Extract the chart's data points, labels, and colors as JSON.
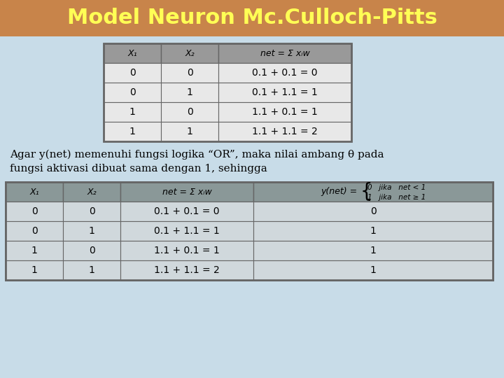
{
  "title": "Model Neuron Mc.Culloch-Pitts",
  "title_color": "#FFFF55",
  "title_bg_color": "#C8844A",
  "bg_color": "#C8DCE8",
  "table1_header": [
    "X₁",
    "X₂",
    "net = Σ xᵢw"
  ],
  "table1_rows": [
    [
      "0",
      "0",
      "0.1 + 0.1 = 0"
    ],
    [
      "0",
      "1",
      "0.1 + 1.1 = 1"
    ],
    [
      "1",
      "0",
      "1.1 + 0.1 = 1"
    ],
    [
      "1",
      "1",
      "1.1 + 1.1 = 2"
    ]
  ],
  "middle_text_line1": "Agar y(net) memenuhi fungsi logika “OR”, maka nilai ambang θ pada",
  "middle_text_line2": "fungsi aktivasi dibuat sama dengan 1, sehingga",
  "table2_rows": [
    [
      "0",
      "0",
      "0.1 + 0.1 = 0",
      "0"
    ],
    [
      "0",
      "1",
      "0.1 + 1.1 = 1",
      "1"
    ],
    [
      "1",
      "0",
      "1.1 + 0.1 = 1",
      "1"
    ],
    [
      "1",
      "1",
      "1.1 + 1.1 = 2",
      "1"
    ]
  ],
  "header_bg": "#999999",
  "table1_cell_bg": "#E8E8E8",
  "table2_header_bg": "#8A9898",
  "table2_cell_bg": "#D0D8DC",
  "table_border": "#666666"
}
